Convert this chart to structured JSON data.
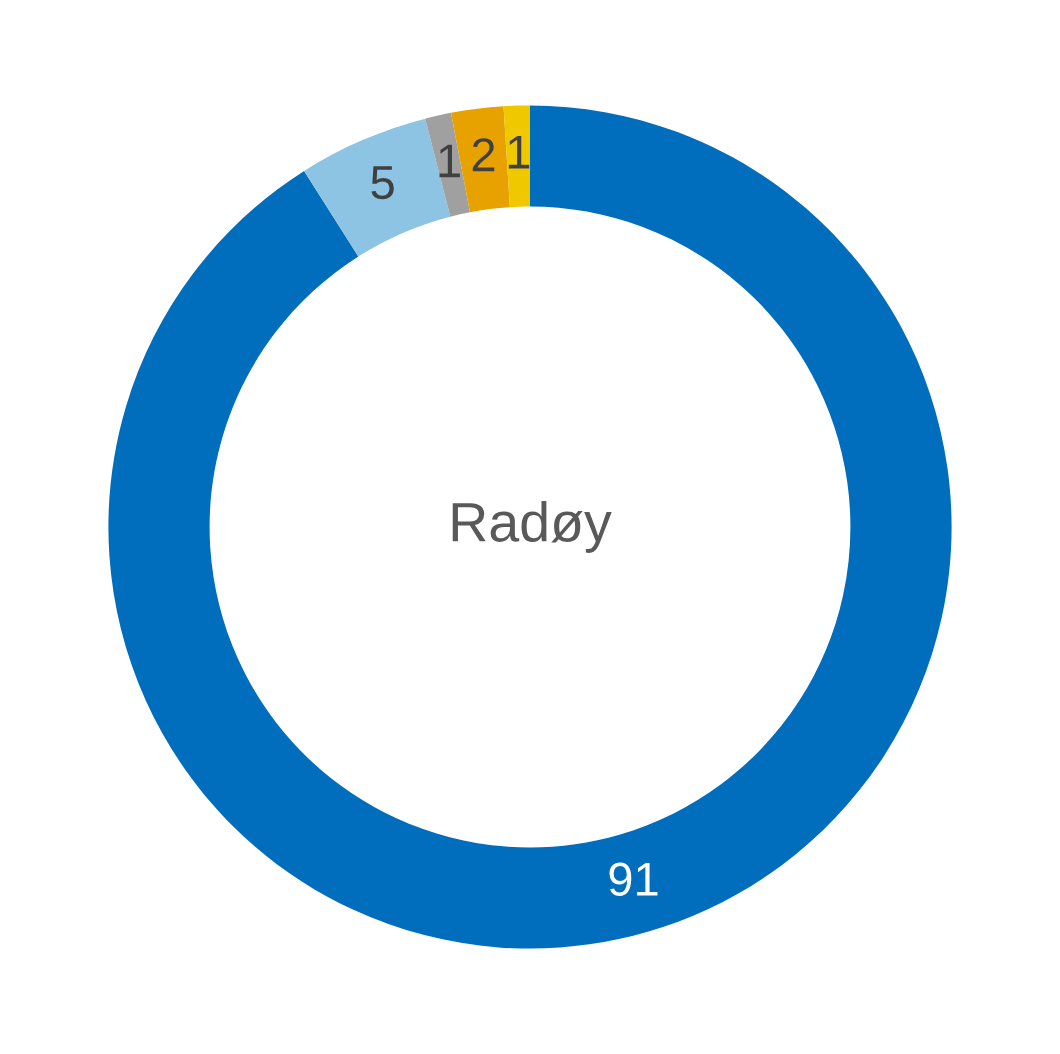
{
  "chart_data": {
    "type": "donut",
    "categories": [
      null,
      null,
      null,
      null,
      null
    ],
    "values": [
      91,
      5,
      1,
      2,
      1
    ],
    "colors": [
      "#006ebc",
      "#8dc3e3",
      "#a0a0a0",
      "#e8a200",
      "#f0c800"
    ],
    "data_labels": true,
    "annotations": [
      "Radøy"
    ]
  }
}
